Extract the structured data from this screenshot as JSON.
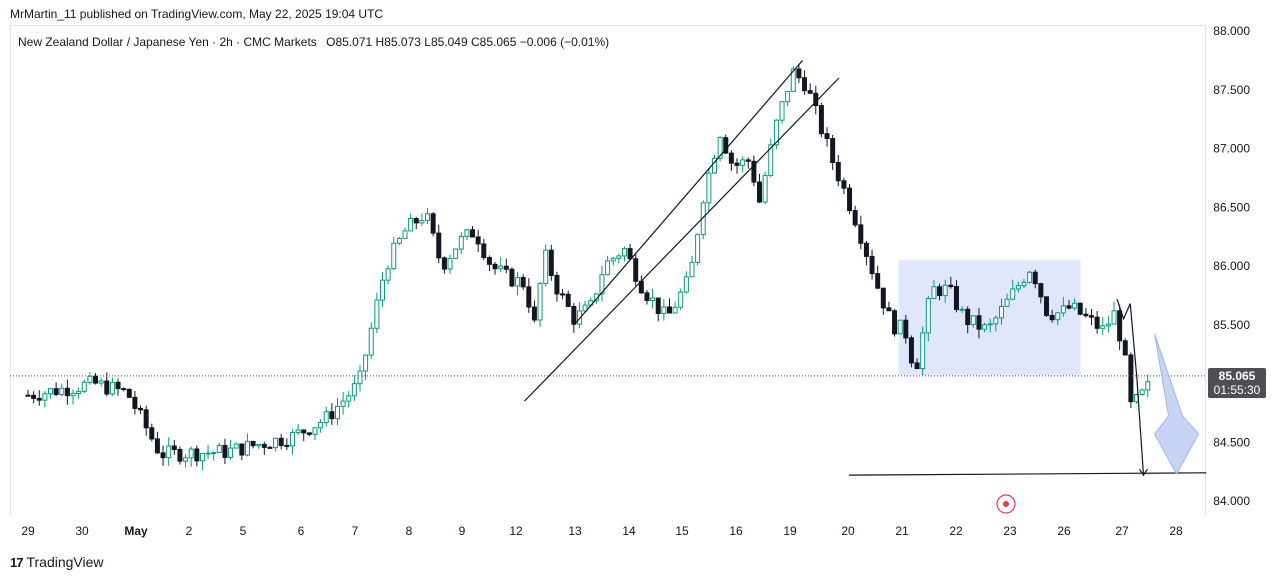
{
  "header": {
    "published_line": "MrMartin_11 published on TradingView.com, May 22, 2025 19:04 UTC"
  },
  "legend": {
    "symbol": "New Zealand Dollar / Japanese Yen · 2h · CMC Markets",
    "open": "O85.071",
    "high": "H85.073",
    "low": "L85.049",
    "close": "C85.065",
    "change": "−0.006 (−0.01%)"
  },
  "price_badge": {
    "price": "85.065",
    "countdown": "01:55:30"
  },
  "footer": {
    "brand": "TradingView"
  },
  "colors": {
    "up": "#089981",
    "down": "#131722",
    "zone": "#dbe3fb",
    "arrow": "#b4c6f2"
  },
  "chart_data": {
    "type": "candlestick",
    "title": "New Zealand Dollar / Japanese Yen · 2h · CMC Markets",
    "y_ticks": [
      "88.000",
      "87.500",
      "87.000",
      "86.500",
      "86.000",
      "85.500",
      "85.000",
      "84.500",
      "84.000"
    ],
    "ylim": [
      83.85,
      88.05
    ],
    "x_ticks": [
      "29",
      "30",
      "May",
      "2",
      "5",
      "6",
      "7",
      "8",
      "9",
      "12",
      "13",
      "14",
      "15",
      "16",
      "19",
      "20",
      "21",
      "22",
      "23",
      "26",
      "27",
      "28"
    ],
    "last_price": 85.065,
    "path": [
      [
        0,
        84.9
      ],
      [
        2,
        85.0
      ],
      [
        3,
        84.92
      ],
      [
        4,
        84.4
      ],
      [
        6,
        84.42
      ],
      [
        8,
        84.55
      ],
      [
        9,
        84.7
      ],
      [
        10,
        85.0
      ],
      [
        10.8,
        86.0
      ],
      [
        11.4,
        86.3
      ],
      [
        12,
        86.45
      ],
      [
        12.5,
        86.0
      ],
      [
        13,
        86.2
      ],
      [
        13.5,
        86.3
      ],
      [
        14,
        86.0
      ],
      [
        14.5,
        85.9
      ],
      [
        15,
        85.85
      ],
      [
        15.3,
        85.5
      ],
      [
        15.6,
        86.1
      ],
      [
        16,
        85.8
      ],
      [
        16.5,
        85.55
      ],
      [
        17,
        85.65
      ],
      [
        17.4,
        86.0
      ],
      [
        18,
        86.15
      ],
      [
        18.6,
        85.8
      ],
      [
        19.3,
        85.55
      ],
      [
        20,
        85.9
      ],
      [
        20.4,
        86.6
      ],
      [
        20.9,
        87.15
      ],
      [
        21.3,
        86.85
      ],
      [
        21.8,
        86.9
      ],
      [
        22.1,
        86.55
      ],
      [
        22.6,
        87.2
      ],
      [
        23.1,
        87.65
      ],
      [
        23.5,
        87.55
      ],
      [
        23.8,
        87.3
      ],
      [
        24.3,
        86.9
      ],
      [
        25,
        86.4
      ],
      [
        25.7,
        85.8
      ],
      [
        26.1,
        85.5
      ],
      [
        26.5,
        85.45
      ],
      [
        26.8,
        85.1
      ],
      [
        27.3,
        85.8
      ],
      [
        27.8,
        85.8
      ],
      [
        28.3,
        85.55
      ],
      [
        29,
        85.45
      ],
      [
        29.6,
        85.7
      ],
      [
        30.3,
        86.0
      ],
      [
        30.8,
        85.6
      ],
      [
        31.2,
        85.6
      ],
      [
        31.5,
        85.65
      ],
      [
        32,
        85.55
      ],
      [
        32.5,
        85.45
      ],
      [
        32.8,
        85.6
      ],
      [
        33.1,
        85.3
      ],
      [
        33.3,
        84.8
      ],
      [
        33.5,
        84.85
      ],
      [
        33.8,
        84.95
      ],
      [
        34,
        85.06
      ]
    ]
  },
  "annotations": {
    "channel_upper": {
      "from": [
        16.5,
        85.5
      ],
      "to": [
        23.4,
        87.75
      ]
    },
    "channel_lower": {
      "from": [
        15.0,
        84.85
      ],
      "to": [
        24.5,
        87.6
      ]
    },
    "range_box": {
      "x0": 26.3,
      "x1": 31.8,
      "y0": 85.07,
      "y1": 86.05
    },
    "target_line": {
      "from": [
        24.8,
        84.22
      ],
      "to": [
        35.6,
        84.24
      ]
    },
    "drop_path": [
      [
        32.9,
        85.72
      ],
      [
        33.1,
        85.55
      ],
      [
        33.3,
        85.68
      ],
      [
        33.5,
        85.05
      ],
      [
        33.7,
        84.22
      ]
    ],
    "forecast_arrow_tip": [
      34.7,
      84.23
    ]
  }
}
